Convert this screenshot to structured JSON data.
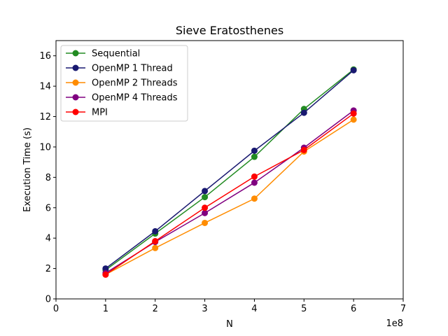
{
  "chart_data": {
    "type": "line",
    "title": "Sieve Eratosthenes",
    "xlabel": "N",
    "ylabel": "Execution Time (s)",
    "x_offset_label": "1e8",
    "xlim": [
      0,
      7
    ],
    "ylim": [
      0,
      17
    ],
    "xticks": [
      0,
      1,
      2,
      3,
      4,
      5,
      6,
      7
    ],
    "yticks": [
      0,
      2,
      4,
      6,
      8,
      10,
      12,
      14,
      16
    ],
    "x": [
      1,
      2,
      3,
      4,
      5,
      6
    ],
    "grid": false,
    "legend_position": "upper-left",
    "series": [
      {
        "name": "Sequential",
        "color": "#228b22",
        "values": [
          1.9,
          4.3,
          6.7,
          9.35,
          12.5,
          15.1
        ]
      },
      {
        "name": "OpenMP 1 Thread",
        "color": "#191970",
        "values": [
          2.0,
          4.45,
          7.1,
          9.75,
          12.25,
          15.05
        ]
      },
      {
        "name": "OpenMP 2 Threads",
        "color": "#ff8c00",
        "values": [
          1.6,
          3.35,
          5.0,
          6.6,
          9.7,
          11.8
        ]
      },
      {
        "name": "OpenMP 4 Threads",
        "color": "#800080",
        "values": [
          1.7,
          3.75,
          5.65,
          7.65,
          9.95,
          12.4
        ]
      },
      {
        "name": "MPI",
        "color": "#ff0000",
        "values": [
          1.6,
          3.8,
          6.0,
          8.05,
          9.8,
          12.2
        ]
      }
    ]
  }
}
